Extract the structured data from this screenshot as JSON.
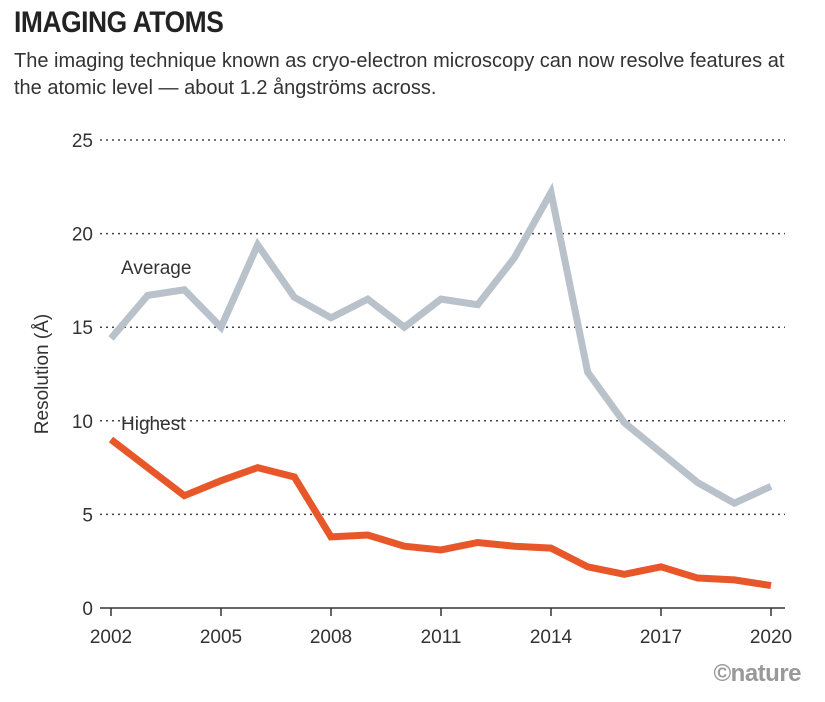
{
  "chart_data": {
    "type": "line",
    "title": "IMAGING ATOMS",
    "subtitle": "The imaging technique known as cryo-electron microscopy can now resolve features at the atomic level — about 1.2 ångströms across.",
    "xlabel": "",
    "ylabel": "Resolution (Å)",
    "ylim": [
      0,
      25
    ],
    "xlim": [
      2002,
      2020
    ],
    "yticks": [
      "0",
      "5",
      "10",
      "15",
      "20",
      "25"
    ],
    "xticks": [
      "2002",
      "2005",
      "2008",
      "2011",
      "2014",
      "2017",
      "2020"
    ],
    "grid": "horizontal dotted",
    "x": [
      2002,
      2003,
      2004,
      2005,
      2006,
      2007,
      2008,
      2009,
      2010,
      2011,
      2012,
      2013,
      2014,
      2015,
      2016,
      2017,
      2018,
      2019,
      2020
    ],
    "series": [
      {
        "name": "Average",
        "color": "#b9c1ca",
        "values": [
          14.4,
          16.7,
          17.0,
          15.0,
          19.4,
          16.6,
          15.5,
          16.5,
          15.0,
          16.5,
          16.2,
          18.7,
          22.2,
          12.6,
          9.9,
          8.3,
          6.7,
          5.6,
          6.5
        ]
      },
      {
        "name": "Highest",
        "color": "#e8572a",
        "values": [
          9.0,
          7.5,
          6.0,
          6.8,
          7.5,
          7.0,
          3.8,
          3.9,
          3.3,
          3.1,
          3.5,
          3.3,
          3.2,
          2.2,
          1.8,
          2.2,
          1.6,
          1.5,
          1.2
        ]
      }
    ]
  },
  "credit": "©nature"
}
